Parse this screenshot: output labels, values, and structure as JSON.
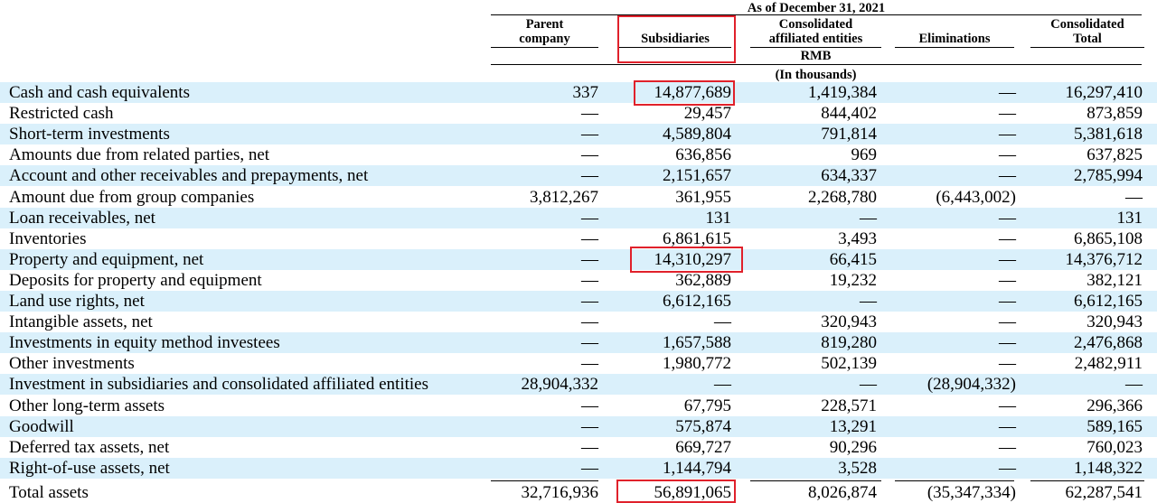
{
  "header": {
    "period": "As of December 31, 2021",
    "columns": {
      "parent": [
        "Parent",
        "company"
      ],
      "subsidiaries": "Subsidiaries",
      "affiliated": [
        "Consolidated",
        "affiliated entities"
      ],
      "eliminations": "Eliminations",
      "total": [
        "Consolidated",
        "Total"
      ]
    },
    "currency": "RMB",
    "unit": "(In thousands)"
  },
  "table": {
    "rows": [
      {
        "label": "Cash and cash equivalents",
        "parent": "337",
        "subsidiaries": "14,877,689",
        "affiliated": "1,419,384",
        "eliminations": "—",
        "total": "16,297,410"
      },
      {
        "label": "Restricted cash",
        "parent": "—",
        "subsidiaries": "29,457",
        "affiliated": "844,402",
        "eliminations": "—",
        "total": "873,859"
      },
      {
        "label": "Short-term investments",
        "parent": "—",
        "subsidiaries": "4,589,804",
        "affiliated": "791,814",
        "eliminations": "—",
        "total": "5,381,618"
      },
      {
        "label": "Amounts due from related parties, net",
        "parent": "—",
        "subsidiaries": "636,856",
        "affiliated": "969",
        "eliminations": "—",
        "total": "637,825"
      },
      {
        "label": "Account and other receivables and prepayments, net",
        "parent": "—",
        "subsidiaries": "2,151,657",
        "affiliated": "634,337",
        "eliminations": "—",
        "total": "2,785,994"
      },
      {
        "label": "Amount due from group companies",
        "parent": "3,812,267",
        "subsidiaries": "361,955",
        "affiliated": "2,268,780",
        "eliminations": "(6,443,002)",
        "total": "—"
      },
      {
        "label": "Loan receivables, net",
        "parent": "—",
        "subsidiaries": "131",
        "affiliated": "—",
        "eliminations": "—",
        "total": "131"
      },
      {
        "label": "Inventories",
        "parent": "—",
        "subsidiaries": "6,861,615",
        "affiliated": "3,493",
        "eliminations": "—",
        "total": "6,865,108"
      },
      {
        "label": "Property and equipment, net",
        "parent": "—",
        "subsidiaries": "14,310,297",
        "affiliated": "66,415",
        "eliminations": "—",
        "total": "14,376,712"
      },
      {
        "label": "Deposits for property and equipment",
        "parent": "—",
        "subsidiaries": "362,889",
        "affiliated": "19,232",
        "eliminations": "—",
        "total": "382,121"
      },
      {
        "label": "Land use rights, net",
        "parent": "—",
        "subsidiaries": "6,612,165",
        "affiliated": "—",
        "eliminations": "—",
        "total": "6,612,165"
      },
      {
        "label": "Intangible assets, net",
        "parent": "—",
        "subsidiaries": "—",
        "affiliated": "320,943",
        "eliminations": "—",
        "total": "320,943"
      },
      {
        "label": "Investments in equity method investees",
        "parent": "—",
        "subsidiaries": "1,657,588",
        "affiliated": "819,280",
        "eliminations": "—",
        "total": "2,476,868"
      },
      {
        "label": "Other investments",
        "parent": "—",
        "subsidiaries": "1,980,772",
        "affiliated": "502,139",
        "eliminations": "—",
        "total": "2,482,911"
      },
      {
        "label": "Investment in subsidiaries and consolidated affiliated entities",
        "parent": "28,904,332",
        "subsidiaries": "—",
        "affiliated": "—",
        "eliminations": "(28,904,332)",
        "total": "—"
      },
      {
        "label": "Other long-term assets",
        "parent": "—",
        "subsidiaries": "67,795",
        "affiliated": "228,571",
        "eliminations": "—",
        "total": "296,366"
      },
      {
        "label": "Goodwill",
        "parent": "—",
        "subsidiaries": "575,874",
        "affiliated": "13,291",
        "eliminations": "—",
        "total": "589,165"
      },
      {
        "label": "Deferred tax assets, net",
        "parent": "—",
        "subsidiaries": "669,727",
        "affiliated": "90,296",
        "eliminations": "—",
        "total": "760,023"
      },
      {
        "label": "Right-of-use assets, net",
        "parent": "—",
        "subsidiaries": "1,144,794",
        "affiliated": "3,528",
        "eliminations": "—",
        "total": "1,148,322"
      },
      {
        "label": "Total assets",
        "parent": "32,716,936",
        "subsidiaries": "56,891,065",
        "affiliated": "8,026,874",
        "eliminations": "(35,347,334)",
        "total": "62,287,541"
      }
    ]
  },
  "highlight_color": "#e0212b",
  "row_shade_color": "#daf0fb"
}
